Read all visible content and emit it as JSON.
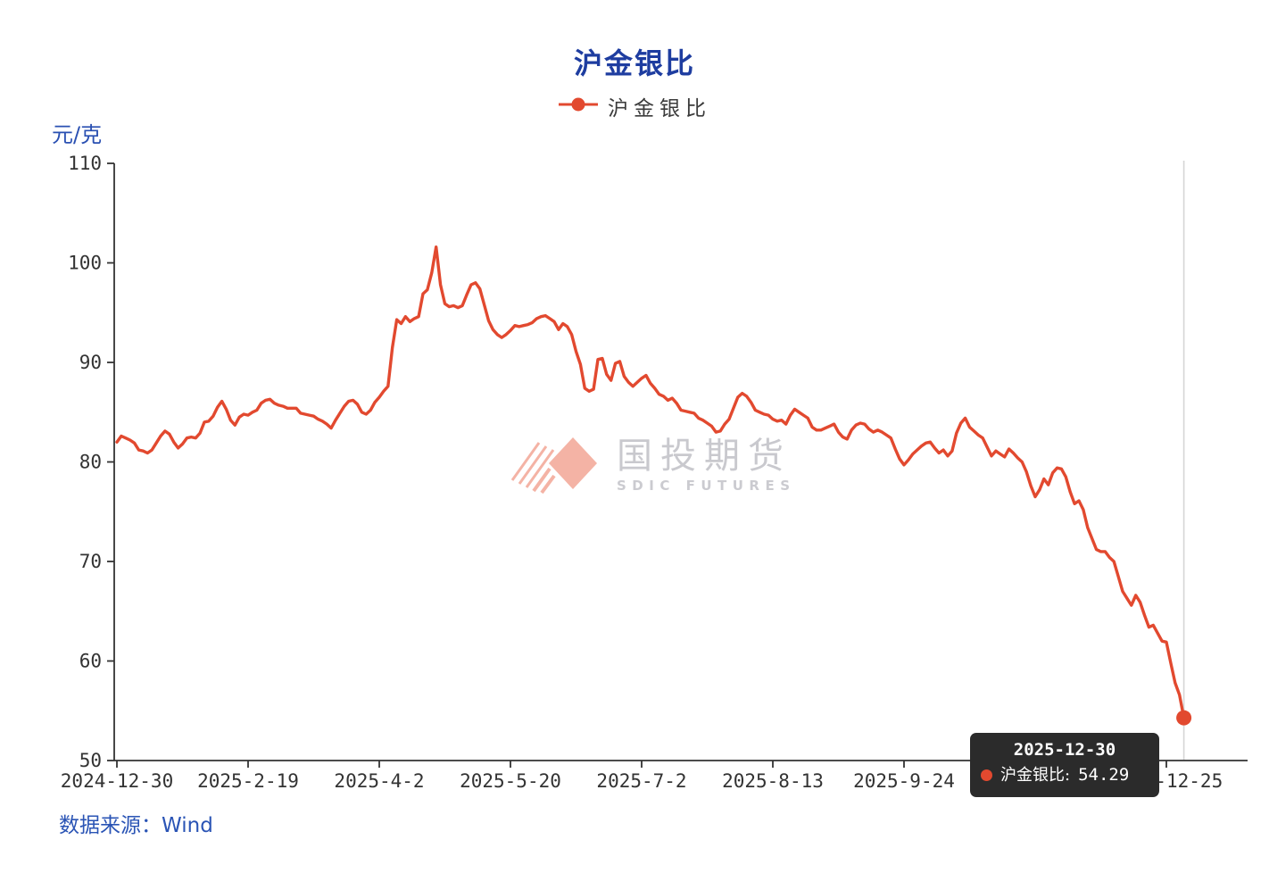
{
  "title": "沪金银比",
  "legend": {
    "label": "沪金银比",
    "marker_color": "#e2492f"
  },
  "y_axis": {
    "unit": "元/克"
  },
  "tooltip": {
    "date": "2025-12-30",
    "series_label": "沪金银比:",
    "value": "54.29",
    "marker_color": "#e2492f"
  },
  "watermark": {
    "cn": "国投期货",
    "en": "SDIC FUTURES"
  },
  "source": "数据来源：Wind",
  "colors": {
    "line": "#e2492f",
    "title_blue": "#1e3da0",
    "unit_blue": "#2a50b2",
    "source_blue": "#2a54b5",
    "axis": "#333333",
    "axis_pointer": "#d6d6d6",
    "watermark_salmon": "#f4b3a5",
    "watermark_gray": "#c9c9ce",
    "tooltip_bg": "#2b2b2b"
  },
  "chart_data": {
    "type": "line",
    "title": "沪金银比",
    "xlabel": "",
    "ylabel": "元/克",
    "ylim": [
      50,
      110
    ],
    "y_ticks": [
      50,
      60,
      70,
      80,
      90,
      100,
      110
    ],
    "grid": false,
    "legend_position": "top",
    "x_axis_type": "trading-day-category",
    "x_ticks": [
      {
        "i": 0,
        "label": "2024-12-30"
      },
      {
        "i": 30,
        "label": "2025-2-19"
      },
      {
        "i": 60,
        "label": "2025-4-2"
      },
      {
        "i": 90,
        "label": "2025-5-20"
      },
      {
        "i": 120,
        "label": "2025-7-2"
      },
      {
        "i": 150,
        "label": "2025-8-13"
      },
      {
        "i": 180,
        "label": "2025-9-24"
      },
      {
        "i": 210,
        "label": ""
      },
      {
        "i": 240,
        "label": "2025-12-25"
      }
    ],
    "highlighted_point": {
      "date": "2025-12-30",
      "value": 54.29
    },
    "series": [
      {
        "name": "沪金银比",
        "color": "#e2492f",
        "values": [
          82.0,
          82.6,
          82.4,
          82.2,
          81.9,
          81.2,
          81.1,
          80.9,
          81.2,
          81.9,
          82.6,
          83.1,
          82.8,
          82.0,
          81.4,
          81.8,
          82.4,
          82.5,
          82.4,
          82.9,
          84.0,
          84.1,
          84.6,
          85.5,
          86.1,
          85.3,
          84.2,
          83.7,
          84.5,
          84.8,
          84.7,
          85.0,
          85.2,
          85.9,
          86.2,
          86.3,
          85.9,
          85.7,
          85.6,
          85.4,
          85.4,
          85.4,
          84.9,
          84.8,
          84.7,
          84.6,
          84.3,
          84.1,
          83.8,
          83.4,
          84.2,
          84.9,
          85.6,
          86.1,
          86.2,
          85.8,
          85.0,
          84.8,
          85.2,
          86.0,
          86.5,
          87.1,
          87.6,
          91.5,
          94.3,
          93.9,
          94.6,
          94.1,
          94.4,
          94.6,
          96.9,
          97.3,
          99.0,
          101.6,
          97.8,
          95.9,
          95.6,
          95.7,
          95.5,
          95.7,
          96.8,
          97.8,
          98.0,
          97.4,
          95.8,
          94.2,
          93.3,
          92.8,
          92.5,
          92.8,
          93.2,
          93.7,
          93.6,
          93.7,
          93.8,
          94.0,
          94.4,
          94.6,
          94.7,
          94.4,
          94.1,
          93.3,
          93.9,
          93.6,
          92.8,
          91.1,
          89.8,
          87.4,
          87.1,
          87.3,
          90.3,
          90.4,
          88.8,
          88.2,
          89.9,
          90.1,
          88.6,
          88.0,
          87.6,
          88.0,
          88.4,
          88.7,
          87.9,
          87.4,
          86.8,
          86.6,
          86.2,
          86.4,
          85.9,
          85.2,
          85.1,
          85.0,
          84.9,
          84.4,
          84.2,
          83.9,
          83.6,
          83.0,
          83.1,
          83.8,
          84.3,
          85.4,
          86.5,
          86.9,
          86.6,
          86.0,
          85.2,
          85.0,
          84.8,
          84.7,
          84.3,
          84.1,
          84.2,
          83.8,
          84.7,
          85.3,
          85.0,
          84.7,
          84.4,
          83.5,
          83.2,
          83.2,
          83.4,
          83.6,
          83.8,
          83.0,
          82.5,
          82.3,
          83.2,
          83.7,
          83.9,
          83.8,
          83.3,
          83.0,
          83.2,
          83.0,
          82.7,
          82.4,
          81.3,
          80.3,
          79.7,
          80.2,
          80.8,
          81.2,
          81.6,
          81.9,
          82.0,
          81.4,
          80.9,
          81.2,
          80.6,
          81.1,
          82.9,
          83.9,
          84.4,
          83.5,
          83.1,
          82.7,
          82.4,
          81.5,
          80.6,
          81.1,
          80.8,
          80.5,
          81.3,
          80.9,
          80.4,
          80.0,
          79.0,
          77.6,
          76.5,
          77.2,
          78.3,
          77.7,
          78.9,
          79.4,
          79.3,
          78.5,
          77.0,
          75.8,
          76.1,
          75.2,
          73.4,
          72.3,
          71.2,
          71.0,
          71.0,
          70.4,
          70.0,
          68.5,
          67.0,
          66.3,
          65.6,
          66.6,
          65.9,
          64.6,
          63.4,
          63.6,
          62.8,
          62.0,
          61.9,
          59.8,
          57.8,
          56.6,
          54.29
        ]
      }
    ]
  }
}
